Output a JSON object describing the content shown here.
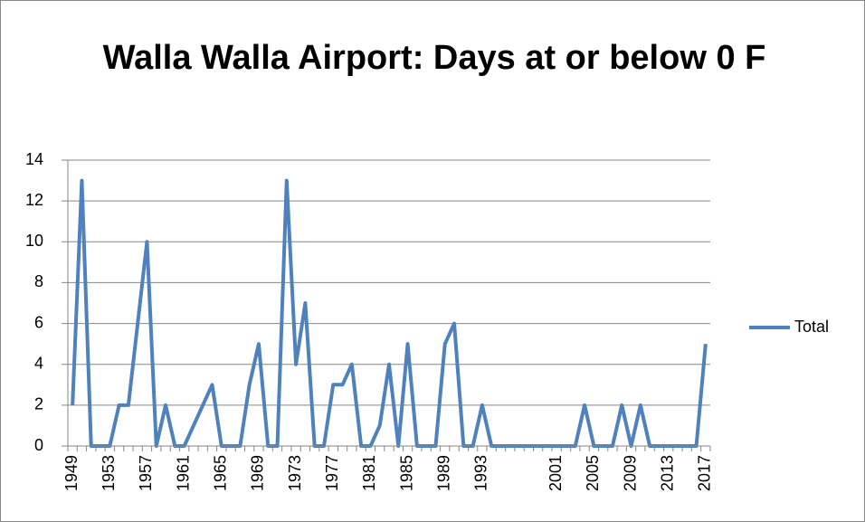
{
  "chart_data": {
    "type": "line",
    "title": "Walla Walla Airport: Days at or below 0 F",
    "categories": [
      "1949",
      null,
      null,
      null,
      "1953",
      null,
      null,
      null,
      "1957",
      null,
      null,
      null,
      "1961",
      null,
      null,
      null,
      "1965",
      null,
      null,
      null,
      "1969",
      null,
      null,
      null,
      "1973",
      null,
      null,
      null,
      "1977",
      null,
      null,
      null,
      "1981",
      null,
      null,
      null,
      "1985",
      null,
      null,
      null,
      "1989",
      null,
      null,
      null,
      "1993",
      null,
      null,
      null,
      null,
      null,
      null,
      null,
      "2001",
      null,
      null,
      null,
      "2005",
      null,
      null,
      null,
      "2009",
      null,
      null,
      null,
      "2013",
      null,
      null,
      null,
      "2017"
    ],
    "series": [
      {
        "name": "Total",
        "color": "#4f81bd",
        "values": [
          2,
          13,
          0,
          0,
          0,
          2,
          2,
          6,
          10,
          0,
          2,
          0,
          0,
          1,
          2,
          3,
          0,
          0,
          0,
          3,
          5,
          0,
          0,
          13,
          4,
          7,
          0,
          0,
          3,
          3,
          4,
          0,
          0,
          1,
          4,
          0,
          5,
          0,
          0,
          0,
          5,
          6,
          0,
          0,
          2,
          0,
          0,
          0,
          0,
          0,
          0,
          0,
          0,
          0,
          0,
          2,
          0,
          0,
          0,
          2,
          0,
          2,
          0,
          0,
          0,
          0,
          0,
          0,
          5
        ]
      }
    ],
    "ylim": [
      0,
      14
    ],
    "yticks": [
      0,
      2,
      4,
      6,
      8,
      10,
      12,
      14
    ],
    "grid": true,
    "legend": "right"
  }
}
